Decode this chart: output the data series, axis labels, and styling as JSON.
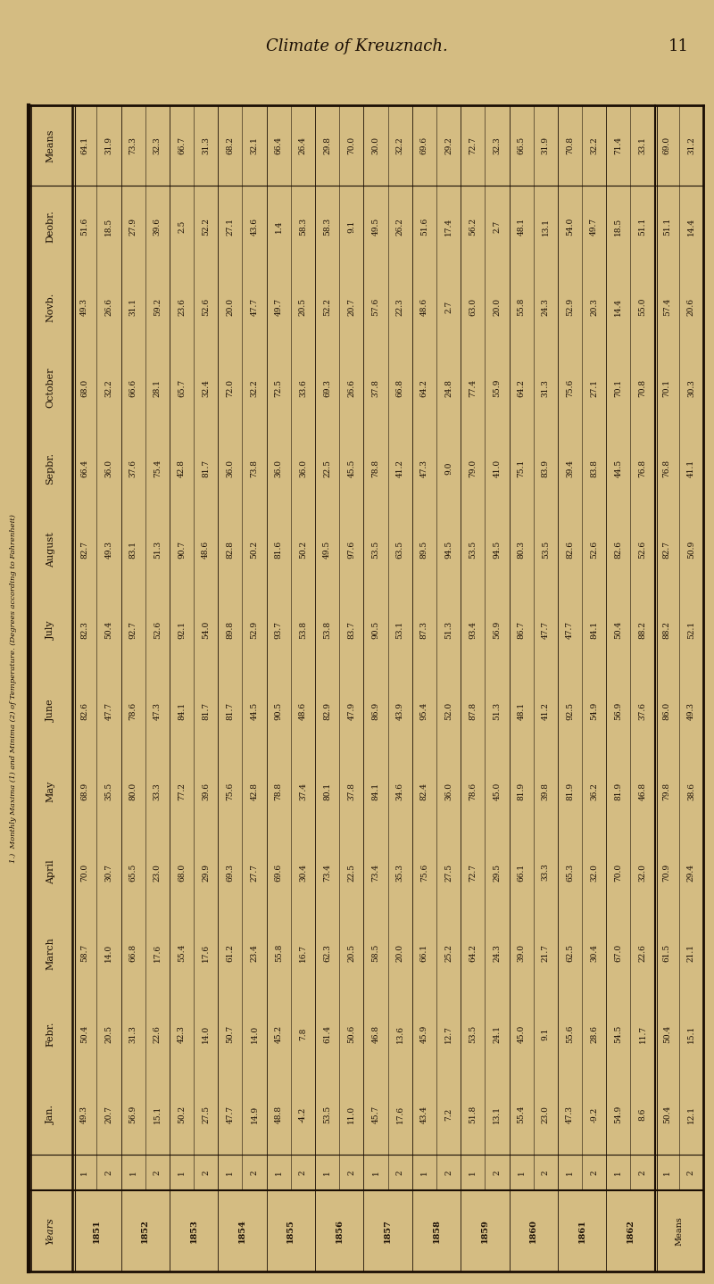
{
  "page_header": "Climate of Kreuznach.",
  "page_number": "11",
  "background_color": "#d4bc82",
  "text_color": "#1a0e04",
  "col_headers": [
    "Years",
    "",
    "Jan.",
    "Febr.",
    "March",
    "April",
    "May",
    "June",
    "July",
    "August",
    "Sepbr.",
    "October",
    "Novb.",
    "Deobr.",
    "Means"
  ],
  "row_label": "1.)  Monthly Maxima (1) and Minima (2) of Temperature. (Degrees according to Fahrenheit)",
  "rows": [
    [
      "1851",
      "1",
      "49.3",
      "50.4",
      "58.7",
      "70.0",
      "68.9",
      "82.6",
      "82.3",
      "82.7",
      "66.4",
      "68.0",
      "49.3",
      "51.6",
      "64.1"
    ],
    [
      "",
      "2",
      "20.7",
      "20.5",
      "14.0",
      "30.7",
      "35.5",
      "47.7",
      "50.4",
      "49.3",
      "36.0",
      "32.2",
      "26.6",
      "18.5",
      "31.9"
    ],
    [
      "1852",
      "1",
      "56.9",
      "31.3",
      "66.8",
      "65.5",
      "80.0",
      "78.6",
      "92.7",
      "83.1",
      "37.6",
      "66.6",
      "31.1",
      "27.9",
      "73.3"
    ],
    [
      "",
      "2",
      "15.1",
      "22.6",
      "17.6",
      "23.0",
      "33.3",
      "47.3",
      "52.6",
      "51.3",
      "75.4",
      "28.1",
      "59.2",
      "39.6",
      "32.3"
    ],
    [
      "1853",
      "1",
      "50.2",
      "42.3",
      "55.4",
      "68.0",
      "77.2",
      "84.1",
      "92.1",
      "90.7",
      "42.8",
      "65.7",
      "23.6",
      "2.5",
      "66.7"
    ],
    [
      "",
      "2",
      "27.5",
      "14.0",
      "17.6",
      "29.9",
      "39.6",
      "81.7",
      "54.0",
      "48.6",
      "81.7",
      "32.4",
      "52.6",
      "52.2",
      "31.3"
    ],
    [
      "1854",
      "1",
      "47.7",
      "50.7",
      "61.2",
      "69.3",
      "75.6",
      "81.7",
      "89.8",
      "82.8",
      "36.0",
      "72.0",
      "20.0",
      "27.1",
      "68.2"
    ],
    [
      "",
      "2",
      "14.9",
      "14.0",
      "23.4",
      "27.7",
      "42.8",
      "44.5",
      "52.9",
      "50.2",
      "73.8",
      "32.2",
      "47.7",
      "43.6",
      "32.1"
    ],
    [
      "1855",
      "1",
      "48.8",
      "45.2",
      "55.8",
      "69.6",
      "78.8",
      "90.5",
      "93.7",
      "81.6",
      "36.0",
      "72.5",
      "49.7",
      "1.4",
      "66.4"
    ],
    [
      "",
      "2",
      "-4.2",
      "7.8",
      "16.7",
      "30.4",
      "37.4",
      "48.6",
      "53.8",
      "50.2",
      "36.0",
      "33.6",
      "20.5",
      "58.3",
      "26.4"
    ],
    [
      "1856",
      "1",
      "53.5",
      "61.4",
      "62.3",
      "73.4",
      "80.1",
      "82.9",
      "53.8",
      "49.5",
      "22.5",
      "69.3",
      "52.2",
      "58.3",
      "29.8"
    ],
    [
      "",
      "2",
      "11.0",
      "50.6",
      "20.5",
      "22.5",
      "37.8",
      "47.9",
      "83.7",
      "97.6",
      "45.5",
      "26.6",
      "20.7",
      "9.1",
      "70.0"
    ],
    [
      "1857",
      "1",
      "45.7",
      "46.8",
      "58.5",
      "73.4",
      "84.1",
      "86.9",
      "90.5",
      "53.5",
      "78.8",
      "37.8",
      "57.6",
      "49.5",
      "30.0"
    ],
    [
      "",
      "2",
      "17.6",
      "13.6",
      "20.0",
      "35.3",
      "34.6",
      "43.9",
      "53.1",
      "63.5",
      "41.2",
      "66.8",
      "22.3",
      "26.2",
      "32.2"
    ],
    [
      "1858",
      "1",
      "43.4",
      "45.9",
      "66.1",
      "75.6",
      "82.4",
      "95.4",
      "87.3",
      "89.5",
      "47.3",
      "64.2",
      "48.6",
      "51.6",
      "69.6"
    ],
    [
      "",
      "2",
      "7.2",
      "12.7",
      "25.2",
      "27.5",
      "36.0",
      "52.0",
      "51.3",
      "94.5",
      "9.0",
      "24.8",
      "2.7",
      "17.4",
      "29.2"
    ],
    [
      "1859",
      "1",
      "51.8",
      "53.5",
      "64.2",
      "72.7",
      "78.6",
      "87.8",
      "93.4",
      "53.5",
      "79.0",
      "77.4",
      "63.0",
      "56.2",
      "72.7"
    ],
    [
      "",
      "2",
      "13.1",
      "24.1",
      "24.3",
      "29.5",
      "45.0",
      "51.3",
      "56.9",
      "94.5",
      "41.0",
      "55.9",
      "20.0",
      "2.7",
      "32.3"
    ],
    [
      "1860",
      "1",
      "55.4",
      "45.0",
      "39.0",
      "66.1",
      "81.9",
      "48.1",
      "86.7",
      "80.3",
      "75.1",
      "64.2",
      "55.8",
      "48.1",
      "66.5"
    ],
    [
      "",
      "2",
      "23.0",
      "9.1",
      "21.7",
      "33.3",
      "39.8",
      "41.2",
      "47.7",
      "53.5",
      "83.9",
      "31.3",
      "24.3",
      "13.1",
      "31.9"
    ],
    [
      "1861",
      "1",
      "47.3",
      "55.6",
      "62.5",
      "65.3",
      "81.9",
      "92.5",
      "47.7",
      "82.6",
      "39.4",
      "75.6",
      "52.9",
      "54.0",
      "70.8"
    ],
    [
      "",
      "2",
      "-9.2",
      "28.6",
      "30.4",
      "32.0",
      "36.2",
      "54.9",
      "84.1",
      "52.6",
      "83.8",
      "27.1",
      "20.3",
      "49.7",
      "32.2"
    ],
    [
      "1862",
      "1",
      "54.9",
      "54.5",
      "67.0",
      "70.0",
      "81.9",
      "56.9",
      "50.4",
      "82.6",
      "44.5",
      "70.1",
      "14.4",
      "18.5",
      "71.4"
    ],
    [
      "",
      "2",
      "8.6",
      "11.7",
      "22.6",
      "32.0",
      "46.8",
      "37.6",
      "88.2",
      "52.6",
      "76.8",
      "70.8",
      "55.0",
      "51.1",
      "33.1"
    ],
    [
      "Means",
      "1",
      "50.4",
      "50.4",
      "61.5",
      "70.9",
      "79.8",
      "86.0",
      "88.2",
      "82.7",
      "76.8",
      "70.1",
      "57.4",
      "51.1",
      "69.0"
    ],
    [
      "",
      "2",
      "12.1",
      "15.1",
      "21.1",
      "29.4",
      "38.6",
      "49.3",
      "52.1",
      "50.9",
      "41.1",
      "30.3",
      "20.6",
      "14.4",
      "31.2"
    ]
  ]
}
